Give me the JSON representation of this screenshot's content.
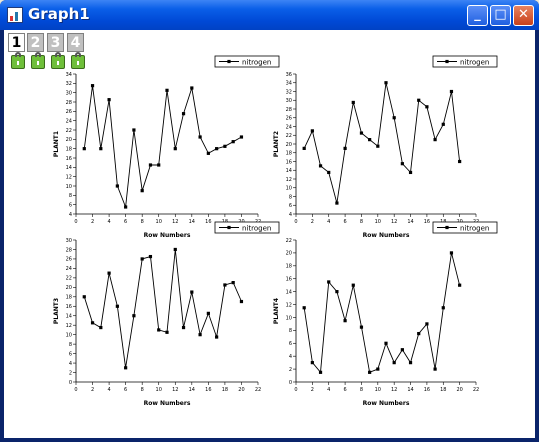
{
  "window": {
    "title": "Graph1",
    "buttons": [
      "_",
      "□",
      "✕"
    ]
  },
  "layer_tabs": [
    "1",
    "2",
    "3",
    "4"
  ],
  "layer_active": "1",
  "colors": {
    "accent": "#0a5fe8",
    "series": "#000000"
  },
  "chart_data": [
    {
      "type": "line",
      "xlabel": "Row Numbers",
      "ylabel": "PLANT1",
      "legend": "nitrogen",
      "xlim": [
        0,
        22
      ],
      "xticks": [
        0,
        2,
        4,
        6,
        8,
        10,
        12,
        14,
        16,
        18,
        20,
        22
      ],
      "ylim": [
        4,
        34
      ],
      "yticks": [
        4,
        6,
        8,
        10,
        12,
        14,
        16,
        18,
        20,
        22,
        24,
        26,
        28,
        30,
        32,
        34
      ],
      "x": [
        1,
        2,
        3,
        4,
        5,
        6,
        7,
        8,
        9,
        10,
        11,
        12,
        13,
        14,
        15,
        16,
        17,
        18,
        19,
        20
      ],
      "y": [
        18,
        31.5,
        18,
        28.5,
        10,
        5.5,
        22,
        9,
        14.5,
        14.5,
        30.5,
        18,
        25.5,
        31,
        20.5,
        17,
        18,
        18.5,
        19.5,
        20.5
      ]
    },
    {
      "type": "line",
      "xlabel": "Row Numbers",
      "ylabel": "PLANT2",
      "legend": "nitrogen",
      "xlim": [
        0,
        22
      ],
      "xticks": [
        0,
        2,
        4,
        6,
        8,
        10,
        12,
        14,
        16,
        18,
        20,
        22
      ],
      "ylim": [
        4,
        36
      ],
      "yticks": [
        4,
        6,
        8,
        10,
        12,
        14,
        16,
        18,
        20,
        22,
        24,
        26,
        28,
        30,
        32,
        34,
        36
      ],
      "x": [
        1,
        2,
        3,
        4,
        5,
        6,
        7,
        8,
        9,
        10,
        11,
        12,
        13,
        14,
        15,
        16,
        17,
        18,
        19,
        20
      ],
      "y": [
        19,
        23,
        15,
        13.5,
        6.5,
        19,
        29.5,
        22.5,
        21,
        19.5,
        34,
        26,
        15.5,
        13.5,
        30,
        28.5,
        21,
        24.5,
        32,
        16
      ]
    },
    {
      "type": "line",
      "xlabel": "Row Numbers",
      "ylabel": "PLANT3",
      "legend": "nitrogen",
      "xlim": [
        0,
        22
      ],
      "xticks": [
        0,
        2,
        4,
        6,
        8,
        10,
        12,
        14,
        16,
        18,
        20,
        22
      ],
      "ylim": [
        0,
        30
      ],
      "yticks": [
        0,
        2,
        4,
        6,
        8,
        10,
        12,
        14,
        16,
        18,
        20,
        22,
        24,
        26,
        28,
        30
      ],
      "x": [
        1,
        2,
        3,
        4,
        5,
        6,
        7,
        8,
        9,
        10,
        11,
        12,
        13,
        14,
        15,
        16,
        17,
        18,
        19,
        20
      ],
      "y": [
        18,
        12.5,
        11.5,
        23,
        16,
        3,
        14,
        26,
        26.5,
        11,
        10.5,
        28,
        11.5,
        19,
        10,
        14.5,
        9.5,
        20.5,
        21,
        17
      ]
    },
    {
      "type": "line",
      "xlabel": "Row Numbers",
      "ylabel": "PLANT4",
      "legend": "nitrogen",
      "xlim": [
        0,
        22
      ],
      "xticks": [
        0,
        2,
        4,
        6,
        8,
        10,
        12,
        14,
        16,
        18,
        20,
        22
      ],
      "ylim": [
        0,
        22
      ],
      "yticks": [
        0,
        2,
        4,
        6,
        8,
        10,
        12,
        14,
        16,
        18,
        20,
        22
      ],
      "x": [
        1,
        2,
        3,
        4,
        5,
        6,
        7,
        8,
        9,
        10,
        11,
        12,
        13,
        14,
        15,
        16,
        17,
        18,
        19,
        20
      ],
      "y": [
        11.5,
        3,
        1.5,
        15.5,
        14,
        9.5,
        15,
        8.5,
        1.5,
        2,
        6,
        3,
        5,
        3,
        7.5,
        9,
        2,
        11.5,
        20,
        15
      ]
    }
  ]
}
